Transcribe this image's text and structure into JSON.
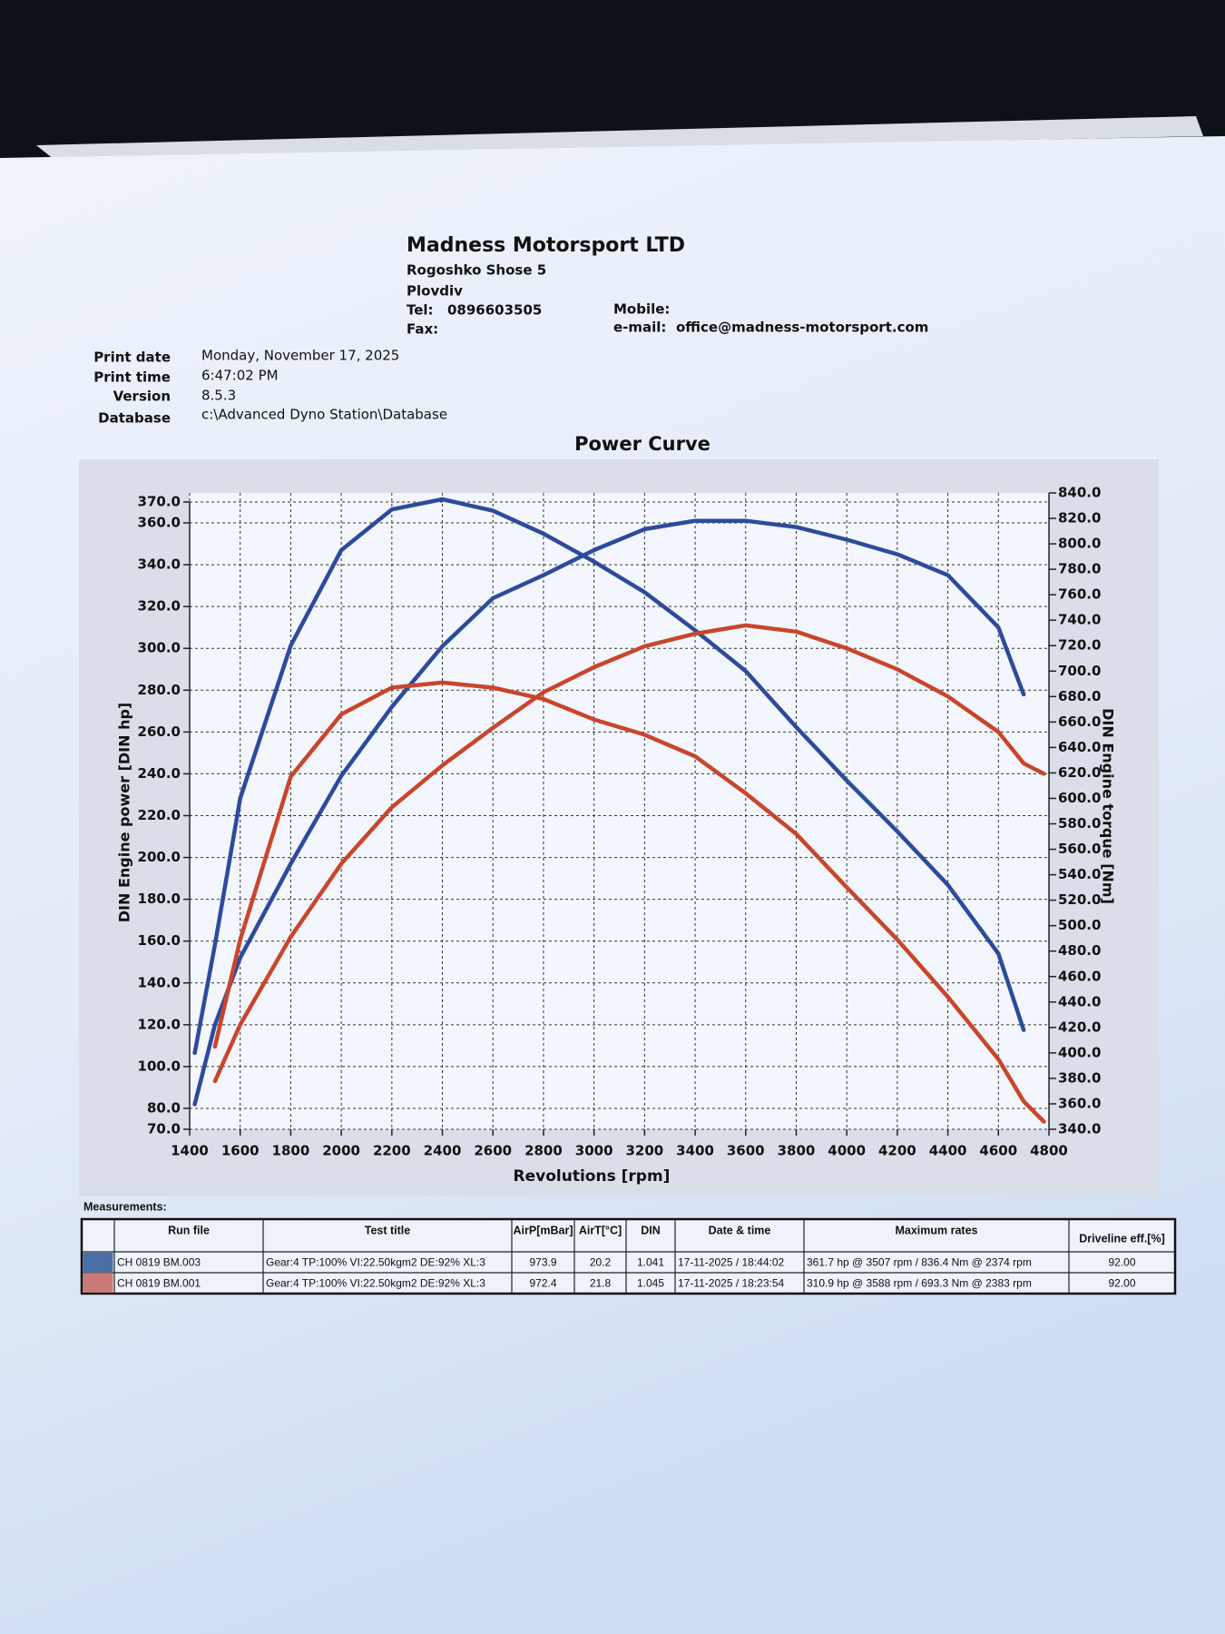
{
  "header": {
    "company": "Madness Motorsport LTD",
    "address": [
      "Rogoshko Shose 5",
      "Plovdiv"
    ],
    "tel_label": "Tel:",
    "tel": "0896603505",
    "fax_label": "Fax:",
    "mobile_label": "Mobile:",
    "email_label": "e-mail:",
    "email": "office@madness-motorsport.com"
  },
  "print_info": [
    {
      "label": "Print date",
      "value": "Monday, November 17, 2025"
    },
    {
      "label": "Print time",
      "value": "6:47:02 PM"
    },
    {
      "label": "Version",
      "value": "8.5.3"
    },
    {
      "label": "Database",
      "value": "c:\\Advanced Dyno Station\\Database"
    }
  ],
  "chart_data": {
    "type": "line",
    "title": "Power Curve",
    "xlabel": "Revolutions [rpm]",
    "ylabel": "DIN Engine power [DIN hp]",
    "y2label": "DIN Engine torque [Nm]",
    "x": [
      1420,
      1500,
      1600,
      1800,
      2000,
      2200,
      2400,
      2600,
      2800,
      3000,
      3200,
      3400,
      3600,
      3800,
      4000,
      4200,
      4400,
      4600,
      4700,
      4780
    ],
    "xlim": [
      1400,
      4800
    ],
    "xticks": [
      1400,
      1600,
      1800,
      2000,
      2200,
      2400,
      2600,
      2800,
      3000,
      3200,
      3400,
      3600,
      3800,
      4000,
      4200,
      4400,
      4600,
      4800
    ],
    "ylim": [
      70,
      370
    ],
    "yticks": [
      {
        "value": 70,
        "label": "70.0"
      },
      {
        "value": 80,
        "label": "80.0"
      },
      {
        "value": 100,
        "label": "100.0"
      },
      {
        "value": 120,
        "label": "120.0"
      },
      {
        "value": 140,
        "label": "140.0"
      },
      {
        "value": 160,
        "label": "160.0"
      },
      {
        "value": 180,
        "label": "180.0"
      },
      {
        "value": 200,
        "label": "200.0"
      },
      {
        "value": 220,
        "label": "220.0"
      },
      {
        "value": 240,
        "label": "240.0"
      },
      {
        "value": 260,
        "label": "260.0"
      },
      {
        "value": 280,
        "label": "280.0"
      },
      {
        "value": 300,
        "label": "300.0"
      },
      {
        "value": 320,
        "label": "320.0"
      },
      {
        "value": 340,
        "label": "340.0"
      },
      {
        "value": 360,
        "label": "360.0"
      },
      {
        "value": 370,
        "label": "370.0"
      }
    ],
    "y2lim": [
      340,
      840
    ],
    "y2ticks": [
      {
        "value": 340,
        "label": "340.0"
      },
      {
        "value": 360,
        "label": "360.0"
      },
      {
        "value": 380,
        "label": "380.0"
      },
      {
        "value": 400,
        "label": "400.0"
      },
      {
        "value": 420,
        "label": "420.0"
      },
      {
        "value": 440,
        "label": "440.0"
      },
      {
        "value": 460,
        "label": "460.0"
      },
      {
        "value": 480,
        "label": "480.0"
      },
      {
        "value": 500,
        "label": "500.0"
      },
      {
        "value": 520,
        "label": "520.0"
      },
      {
        "value": 540,
        "label": "540.0"
      },
      {
        "value": 560,
        "label": "560.0"
      },
      {
        "value": 580,
        "label": "580.0"
      },
      {
        "value": 600,
        "label": "600.0"
      },
      {
        "value": 620,
        "label": "620.0"
      },
      {
        "value": 640,
        "label": "640.0"
      },
      {
        "value": 660,
        "label": "660.0"
      },
      {
        "value": 680,
        "label": "680.0"
      },
      {
        "value": 700,
        "label": "700.0"
      },
      {
        "value": 720,
        "label": "720.0"
      },
      {
        "value": 740,
        "label": "740.0"
      },
      {
        "value": 760,
        "label": "760.0"
      },
      {
        "value": 780,
        "label": "780.0"
      },
      {
        "value": 800,
        "label": "800.0"
      },
      {
        "value": 820,
        "label": "820.0"
      },
      {
        "value": 840,
        "label": "840.0"
      }
    ],
    "grid": true,
    "series": [
      {
        "color": "#2d4b9c",
        "values": [
          82,
          120,
          152,
          197,
          239,
          272,
          301,
          324,
          335,
          347,
          357,
          361,
          361,
          358,
          352,
          345,
          335,
          310,
          278,
          null
        ]
      },
      {
        "color": "#2d4b9c",
        "axis": "y2",
        "values": [
          400,
          485,
          600,
          720,
          795,
          827,
          835,
          826,
          808,
          786,
          762,
          732,
          700,
          656,
          614,
          574,
          532,
          478,
          418,
          null
        ]
      },
      {
        "color": "#c9452b",
        "values": [
          null,
          93,
          120,
          162,
          197,
          224,
          244,
          262,
          279,
          291,
          301,
          307,
          311,
          308,
          300,
          290,
          277,
          260,
          245,
          240
        ]
      },
      {
        "color": "#c9452b",
        "axis": "y2",
        "values": [
          null,
          405,
          489,
          617,
          666,
          687,
          691,
          687,
          678,
          662,
          650,
          633,
          604,
          572,
          530,
          489,
          444,
          395,
          362,
          346
        ]
      }
    ]
  },
  "measurements": {
    "title": "Measurements:",
    "columns": [
      "Run file",
      "Test title",
      "AirP[mBar]",
      "AirT[°C]",
      "DIN",
      "Date & time",
      "Maximum rates",
      "Driveline eff.[%]"
    ],
    "rows": [
      {
        "color": "#4a6fa8",
        "cells": [
          "CH 0819 BM.003",
          "Gear:4 TP:100% VI:22.50kgm2 DE:92% XL:3",
          "973.9",
          "20.2",
          "1.041",
          "17-11-2025 / 18:44:02",
          "361.7 hp @ 3507 rpm / 836.4 Nm @ 2374 rpm",
          "92.00"
        ]
      },
      {
        "color": "#c97a78",
        "cells": [
          "CH 0819 BM.001",
          "Gear:4 TP:100% VI:22.50kgm2 DE:92% XL:3",
          "972.4",
          "21.8",
          "1.045",
          "17-11-2025 / 18:23:54",
          "310.9 hp @ 3588 rpm / 693.3 Nm @ 2383 rpm",
          "92.00"
        ]
      }
    ]
  }
}
